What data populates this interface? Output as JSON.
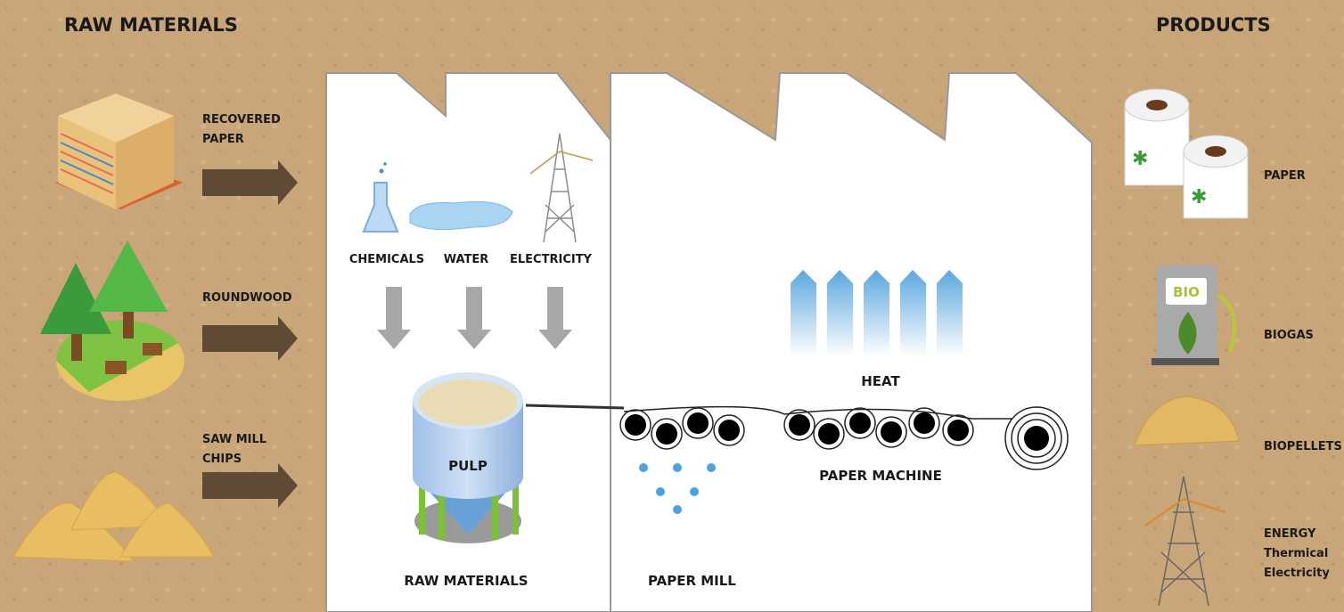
{
  "header": {
    "left_title": "RAW MATERIALS",
    "right_title": "PRODUCTS"
  },
  "raw_materials": [
    {
      "lines": [
        "RECOVERED",
        "PAPER"
      ]
    },
    {
      "lines": [
        "ROUNDWOOD"
      ]
    },
    {
      "lines": [
        "SAW MILL",
        "CHIPS"
      ]
    }
  ],
  "inputs": [
    "CHEMICALS",
    "WATER",
    "ELECTRICITY"
  ],
  "pulp": "PULP",
  "sections": {
    "raw_materials": "RAW MATERIALS",
    "paper_mill": "PAPER MILL"
  },
  "heat": "HEAT",
  "paper_machine": "PAPER MACHINE",
  "products": [
    {
      "lines": [
        "PAPER"
      ]
    },
    {
      "lines": [
        "BIOGAS"
      ]
    },
    {
      "lines": [
        "BIOPELLETS"
      ]
    },
    {
      "lines": [
        "ENERGY",
        "Thermical",
        "Electricity"
      ]
    }
  ],
  "biogas_badge": "BIO"
}
